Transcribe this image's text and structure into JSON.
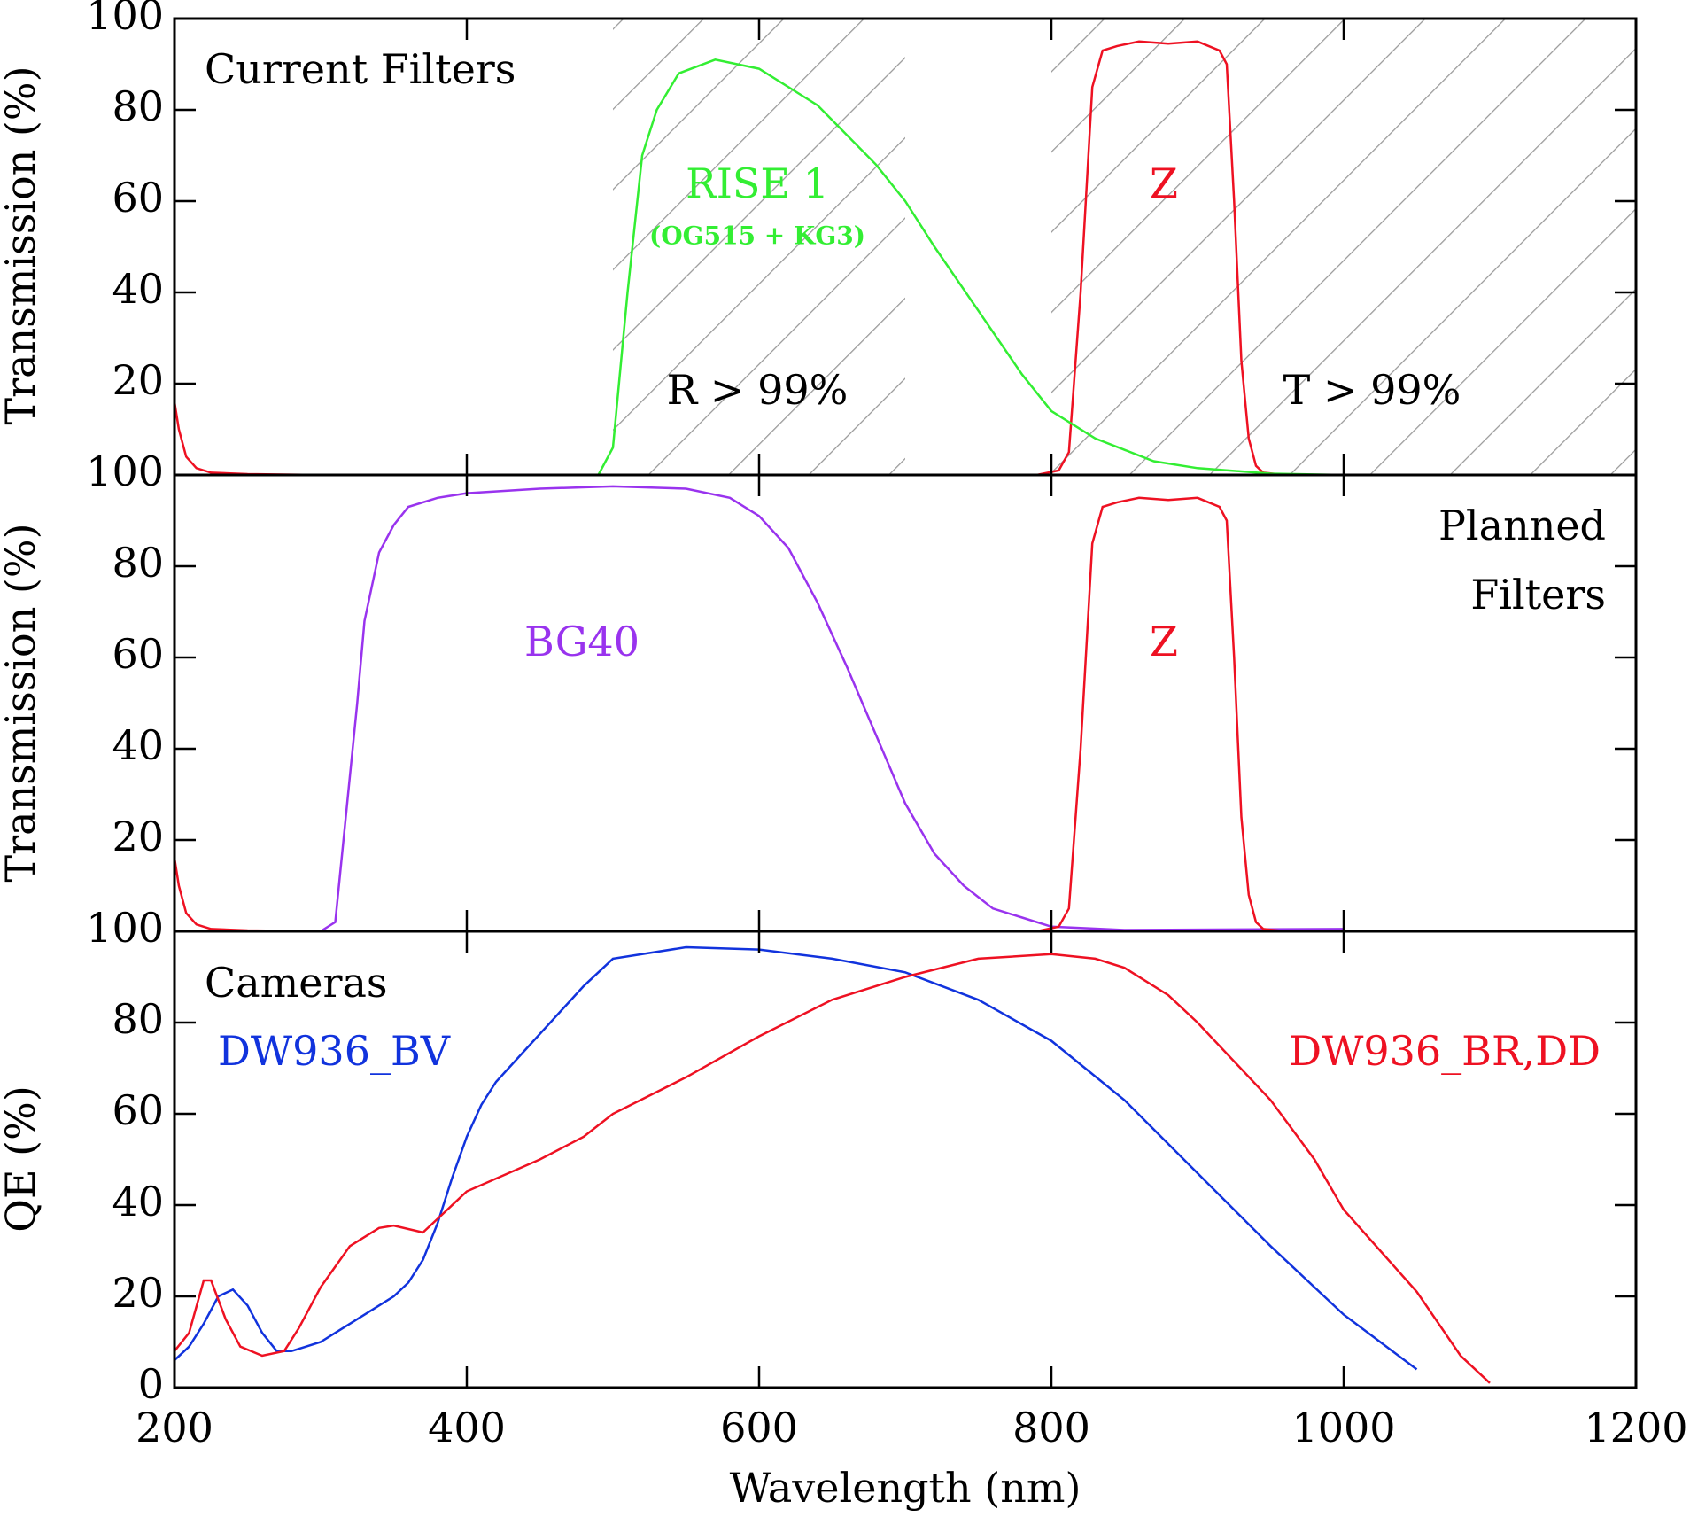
{
  "chart_data": [
    {
      "type": "line",
      "ylabel": "Transmission (%)",
      "xlim": [
        200,
        1200
      ],
      "ylim": [
        0,
        100
      ],
      "yticks": [
        20,
        40,
        60,
        80,
        100
      ],
      "annotations": [
        "Current Filters",
        "(OG515 + KG3)"
      ],
      "regions": [
        {
          "xlim": [
            500,
            700
          ],
          "label": "R > 99%"
        },
        {
          "xlim": [
            800,
            1200
          ],
          "label": "T > 99%"
        }
      ],
      "series": [
        {
          "name": "Z",
          "color": "#ee1122",
          "x": [
            200,
            203,
            208,
            215,
            225,
            250,
            300,
            400,
            500,
            600,
            700,
            790,
            805,
            812,
            820,
            828,
            835,
            845,
            860,
            880,
            900,
            915,
            920,
            925,
            930,
            935,
            940,
            945,
            960
          ],
          "values": [
            16,
            10,
            4,
            1.5,
            0.5,
            0.2,
            0,
            0,
            0,
            0,
            0,
            0,
            1,
            5,
            40,
            85,
            93,
            94,
            95,
            94.5,
            95,
            93,
            90,
            60,
            25,
            8,
            2,
            0.5,
            0
          ]
        },
        {
          "name": "RISE 1",
          "color": "#33ee33",
          "x": [
            490,
            500,
            510,
            520,
            530,
            545,
            570,
            600,
            640,
            680,
            700,
            720,
            750,
            780,
            800,
            830,
            870,
            900,
            950,
            1000
          ],
          "values": [
            0,
            6,
            40,
            70,
            80,
            88,
            91,
            89,
            81,
            68,
            60,
            50,
            36,
            22,
            14,
            8,
            3,
            1.5,
            0.3,
            0
          ]
        }
      ]
    },
    {
      "type": "line",
      "ylabel": "Transmission (%)",
      "xlim": [
        200,
        1200
      ],
      "ylim": [
        0,
        100
      ],
      "yticks": [
        20,
        40,
        60,
        80,
        100
      ],
      "annotations": [
        "Planned",
        "Filters"
      ],
      "series": [
        {
          "name": "BG40",
          "color": "#9933ee",
          "x": [
            300,
            310,
            325,
            330,
            340,
            350,
            360,
            380,
            400,
            450,
            500,
            550,
            580,
            600,
            620,
            640,
            660,
            680,
            700,
            720,
            740,
            760,
            780,
            800,
            850,
            1000
          ],
          "values": [
            0,
            2,
            50,
            68,
            83,
            89,
            93,
            95,
            96,
            97,
            97.5,
            97,
            95,
            91,
            84,
            72,
            58,
            43,
            28,
            17,
            10,
            5,
            3,
            1,
            0.3,
            0.5
          ]
        },
        {
          "name": "Z",
          "color": "#ee1122",
          "x": [
            200,
            203,
            208,
            215,
            225,
            250,
            300,
            400,
            500,
            600,
            700,
            790,
            805,
            812,
            820,
            828,
            835,
            845,
            860,
            880,
            900,
            915,
            920,
            925,
            930,
            935,
            940,
            945,
            960,
            1000
          ],
          "values": [
            16,
            10,
            4,
            1.5,
            0.5,
            0.2,
            0,
            0,
            0,
            0,
            0,
            0,
            1,
            5,
            40,
            85,
            93,
            94,
            95,
            94.5,
            95,
            93,
            90,
            60,
            25,
            8,
            2,
            0.5,
            0,
            0
          ]
        }
      ]
    },
    {
      "type": "line",
      "ylabel": "QE (%)",
      "xlabel": "Wavelength (nm)",
      "xlim": [
        200,
        1200
      ],
      "ylim": [
        0,
        100
      ],
      "yticks": [
        0,
        20,
        40,
        60,
        80,
        100
      ],
      "xticks": [
        200,
        400,
        600,
        800,
        1000,
        1200
      ],
      "annotations": [
        "Cameras"
      ],
      "series": [
        {
          "name": "DW936_BV",
          "color": "#1133dd",
          "x": [
            200,
            210,
            220,
            230,
            240,
            250,
            260,
            270,
            280,
            290,
            300,
            320,
            340,
            350,
            360,
            370,
            380,
            390,
            400,
            410,
            420,
            440,
            460,
            480,
            500,
            550,
            600,
            650,
            700,
            750,
            800,
            850,
            900,
            950,
            1000,
            1050
          ],
          "values": [
            6,
            9,
            14,
            20,
            21.5,
            18,
            12,
            8,
            8,
            9,
            10,
            14,
            18,
            20,
            23,
            28,
            36,
            46,
            55,
            62,
            67,
            74,
            81,
            88,
            94,
            96.5,
            96,
            94,
            91,
            85,
            76,
            63,
            47,
            31,
            16,
            4
          ]
        },
        {
          "name": "DW936_BR,DD",
          "color": "#ee1122",
          "x": [
            200,
            210,
            220,
            225,
            235,
            245,
            260,
            275,
            285,
            300,
            320,
            340,
            350,
            370,
            380,
            400,
            450,
            480,
            500,
            550,
            600,
            650,
            700,
            750,
            800,
            830,
            850,
            880,
            900,
            950,
            980,
            1000,
            1050,
            1080,
            1100
          ],
          "values": [
            8,
            12,
            23.5,
            23.5,
            15,
            9,
            7,
            8,
            13,
            22,
            31,
            35,
            35.5,
            34,
            37,
            43,
            50,
            55,
            60,
            68,
            77,
            85,
            90,
            94,
            95,
            94,
            92,
            86,
            80,
            63,
            50,
            39,
            21,
            7,
            1
          ]
        }
      ]
    }
  ]
}
